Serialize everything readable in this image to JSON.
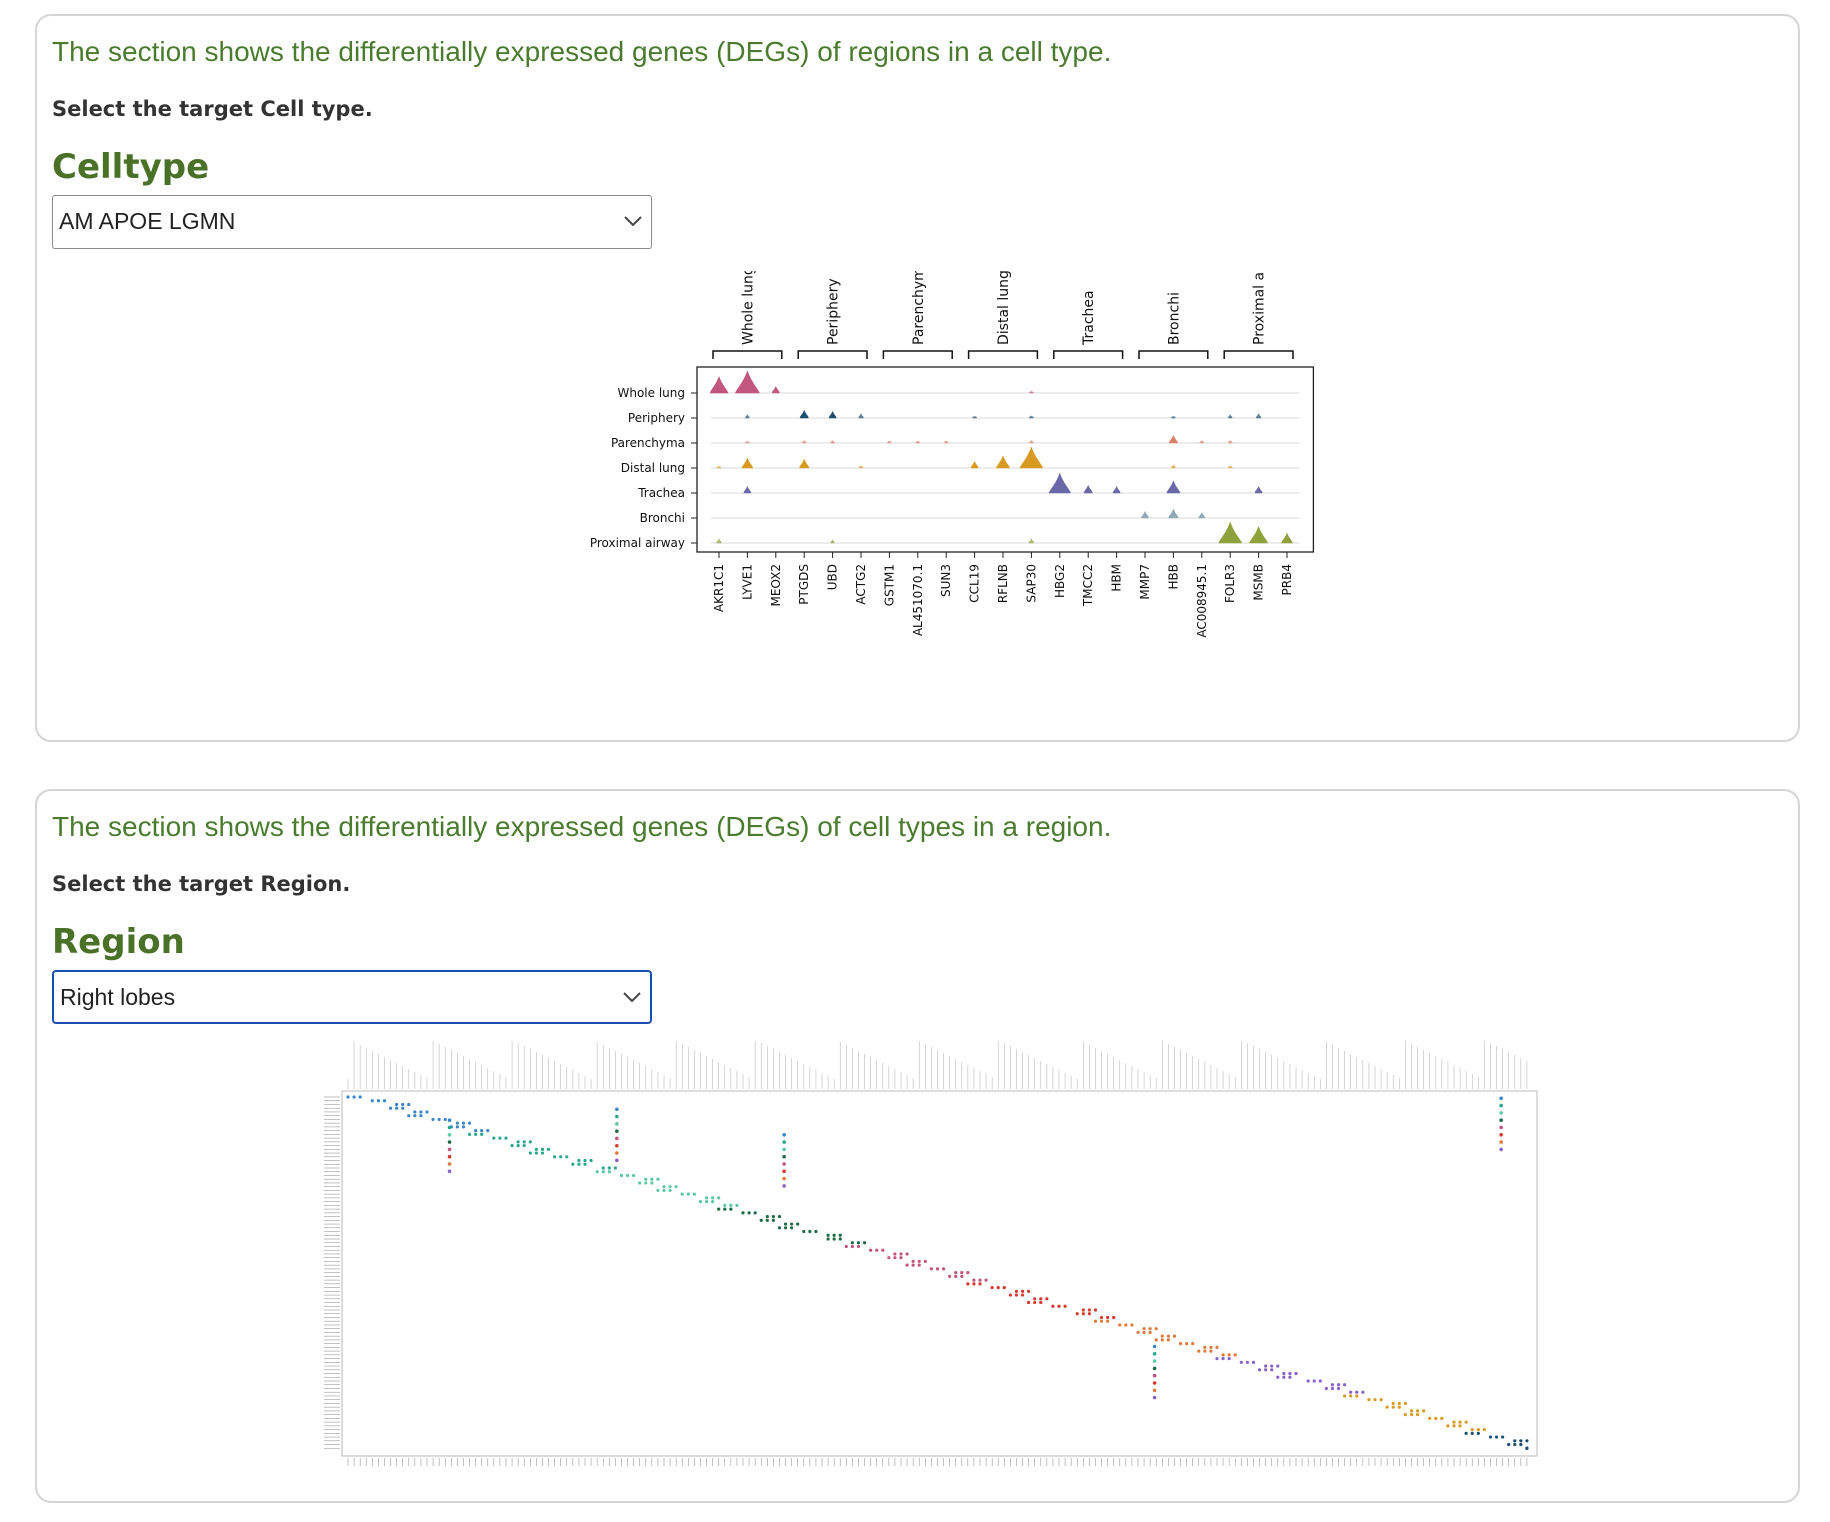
{
  "celltype_section": {
    "intro": "The section shows the differentially expressed genes (DEGs) of regions in a cell type.",
    "instruction": "Select the target Cell type.",
    "title": "Celltype",
    "select_value": "AM APOE LGMN"
  },
  "region_section": {
    "intro": "The section shows the differentially expressed genes (DEGs) of cell types in a region.",
    "instruction": "Select the target Region.",
    "title": "Region",
    "select_value": "Right lobes"
  },
  "chart_data": [
    {
      "type": "violin",
      "rows": [
        "Whole lung",
        "Periphery",
        "Parenchyma",
        "Distal lung",
        "Trachea",
        "Bronchi",
        "Proximal airway"
      ],
      "groups": [
        {
          "name": "Whole lung",
          "genes": [
            "AKR1C1",
            "LYVE1",
            "MEOX2"
          ]
        },
        {
          "name": "Periphery",
          "genes": [
            "PTGDS",
            "UBD",
            "ACTG2"
          ]
        },
        {
          "name": "Parenchyma",
          "genes": [
            "GSTM1",
            "AL451070.1",
            "SUN3"
          ]
        },
        {
          "name": "Distal lung",
          "genes": [
            "CCL19",
            "RFLNB",
            "SAP30"
          ]
        },
        {
          "name": "Trachea",
          "genes": [
            "HBG2",
            "TMCC2",
            "HBM"
          ]
        },
        {
          "name": "Bronchi",
          "genes": [
            "MMP7",
            "HBB",
            "AC008945.1"
          ]
        },
        {
          "name": "Proximal airway",
          "genes": [
            "FOLR3",
            "MSMB",
            "PRB4"
          ]
        }
      ],
      "row_colors": [
        "#c2567c",
        "#1d4e72",
        "#d9826a",
        "#d99a22",
        "#6a68a8",
        "#8fa9b6",
        "#8ea13a"
      ],
      "expression": [
        [
          0.75,
          1.0,
          0.3,
          0.02,
          0.02,
          0.02,
          0.02,
          0.02,
          0.02,
          0.02,
          0.02,
          0.08,
          0.02,
          0.02,
          0.02,
          0.02,
          0.02,
          0.02,
          0.02,
          0.02,
          0.02
        ],
        [
          0.05,
          0.15,
          0.02,
          0.35,
          0.3,
          0.2,
          0.02,
          0.02,
          0.02,
          0.08,
          0.05,
          0.1,
          0.02,
          0.02,
          0.02,
          0.05,
          0.08,
          0.02,
          0.15,
          0.2,
          0.02
        ],
        [
          0.05,
          0.08,
          0.02,
          0.12,
          0.12,
          0.02,
          0.1,
          0.1,
          0.1,
          0.02,
          0.02,
          0.12,
          0.02,
          0.02,
          0.02,
          0.02,
          0.35,
          0.12,
          0.12,
          0.02,
          0.02
        ],
        [
          0.08,
          0.45,
          0.02,
          0.4,
          0.02,
          0.1,
          0.02,
          0.02,
          0.02,
          0.3,
          0.55,
          0.95,
          0.02,
          0.02,
          0.02,
          0.02,
          0.15,
          0.02,
          0.1,
          0.02,
          0.02
        ],
        [
          0.02,
          0.3,
          0.02,
          0.02,
          0.02,
          0.02,
          0.02,
          0.02,
          0.02,
          0.02,
          0.02,
          0.02,
          0.9,
          0.35,
          0.3,
          0.02,
          0.55,
          0.02,
          0.02,
          0.3,
          0.02
        ],
        [
          0.02,
          0.05,
          0.02,
          0.02,
          0.02,
          0.02,
          0.02,
          0.02,
          0.02,
          0.02,
          0.05,
          0.02,
          0.02,
          0.02,
          0.02,
          0.3,
          0.4,
          0.25,
          0.02,
          0.05,
          0.02
        ],
        [
          0.2,
          0.02,
          0.02,
          0.02,
          0.15,
          0.02,
          0.02,
          0.02,
          0.02,
          0.02,
          0.02,
          0.2,
          0.02,
          0.02,
          0.02,
          0.02,
          0.02,
          0.02,
          0.95,
          0.75,
          0.45
        ]
      ]
    },
    {
      "type": "violin",
      "rows": [],
      "genes": [],
      "trend": "diagonal cascade of expression across many cell types and genes; labels too small to read"
    }
  ]
}
